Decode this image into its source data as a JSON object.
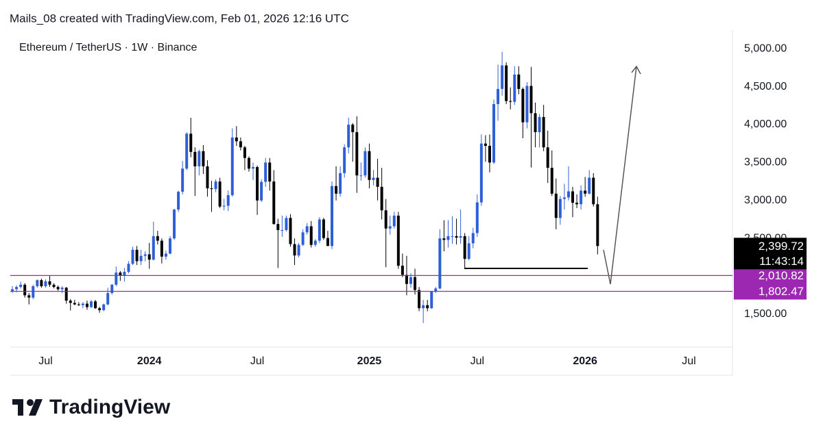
{
  "chart_data": {
    "type": "candlestick",
    "caption": "Mails_08 created with TradingView.com, Feb 01, 2026 12:16 UTC",
    "title": "Ethereum / TetherUS · 1W · Binance",
    "branding": "TradingView",
    "up_color": "#2f5fd6",
    "down_color": "#000000",
    "grid": false,
    "ylim": [
      1085,
      5245
    ],
    "yticks": [
      {
        "value": 1500,
        "label": "1,500.00"
      },
      {
        "value": 2500,
        "label": "2,500.00"
      },
      {
        "value": 3000,
        "label": "3,000.00"
      },
      {
        "value": 3500,
        "label": "3,500.00"
      },
      {
        "value": 4000,
        "label": "4,000.00"
      },
      {
        "value": 4500,
        "label": "4,500.00"
      },
      {
        "value": 5000,
        "label": "5,000.00"
      }
    ],
    "categories": [
      null,
      null,
      null,
      null,
      null,
      null,
      null,
      null,
      "Jul",
      null,
      null,
      null,
      null,
      null,
      null,
      null,
      null,
      null,
      null,
      null,
      null,
      null,
      null,
      null,
      null,
      null,
      null,
      null,
      null,
      null,
      null,
      null,
      null,
      "2024",
      null,
      null,
      null,
      null,
      null,
      null,
      null,
      null,
      null,
      null,
      null,
      null,
      null,
      null,
      null,
      null,
      null,
      null,
      null,
      null,
      null,
      null,
      null,
      null,
      null,
      "Jul",
      null,
      null,
      null,
      null,
      null,
      null,
      null,
      null,
      null,
      null,
      null,
      null,
      null,
      null,
      null,
      null,
      null,
      null,
      null,
      null,
      null,
      null,
      null,
      null,
      null,
      null,
      "2025",
      null,
      null,
      null,
      null,
      null,
      null,
      null,
      null,
      null,
      null,
      null,
      null,
      null,
      null,
      null,
      null,
      null,
      null,
      null,
      null,
      null,
      null,
      null,
      null,
      null,
      "Jul",
      null,
      null,
      null,
      null,
      null,
      null,
      null,
      null,
      null,
      null,
      null,
      null,
      null,
      null,
      null,
      null,
      null,
      null,
      null,
      null,
      null,
      null,
      null,
      null,
      null,
      "2026",
      null,
      null,
      null,
      null,
      null,
      null,
      null,
      null,
      null,
      null,
      null,
      null,
      null,
      null,
      null,
      null,
      null,
      null,
      null,
      null,
      null,
      null,
      null,
      null,
      "Jul",
      null,
      null,
      null,
      null,
      null,
      null,
      null,
      null,
      null,
      null
    ],
    "open": [
      1800,
      1830,
      1860,
      1890,
      1750,
      1720,
      1870,
      1950,
      1870,
      1935,
      1890,
      1860,
      1830,
      1850,
      1680,
      1650,
      1630,
      1620,
      1640,
      1595,
      1670,
      1580,
      1555,
      1630,
      1780,
      1890,
      2050,
      2010,
      2060,
      2165,
      2350,
      2200,
      2270,
      2290,
      2220,
      2530,
      2470,
      2260,
      2300,
      2500,
      2880,
      3115,
      3420,
      3880,
      3640,
      3450,
      3650,
      3450,
      3160,
      3150,
      3250,
      2920,
      2930,
      3070,
      3830,
      3780,
      3700,
      3560,
      3420,
      3440,
      3000,
      3245,
      3500,
      3250,
      2690,
      2610,
      2610,
      2770,
      2425,
      2275,
      2415,
      2580,
      2660,
      2415,
      2470,
      2750,
      2505,
      2400,
      3190,
      3090,
      3360,
      3700,
      4000,
      3900,
      3330,
      3330,
      3650,
      3270,
      3300,
      3180,
      2870,
      2630,
      2660,
      2800,
      2140,
      2020,
      1900,
      1990,
      1820,
      1580,
      1620,
      1580,
      1800,
      1840,
      2500,
      2480,
      2530,
      2530,
      2510,
      2530,
      2230,
      2435,
      2570,
      2975,
      3750,
      3720,
      3500,
      4270,
      4470,
      4780,
      4310,
      4300,
      4660,
      4470,
      4030,
      4510,
      4150,
      3900,
      4100,
      3700,
      3430,
      3090,
      2770,
      3020,
      3040,
      3120,
      2970,
      2950,
      3130,
      3090,
      3300,
      2950,
      null,
      null,
      null,
      null,
      null,
      null,
      null,
      null,
      null,
      null,
      null,
      null,
      null,
      null,
      null,
      null,
      null,
      null,
      null,
      null,
      null,
      null,
      null,
      null,
      null,
      null,
      null,
      null,
      null,
      null,
      null,
      null
    ],
    "high": [
      1870,
      1880,
      1930,
      1910,
      1780,
      1890,
      1960,
      1970,
      1960,
      2010,
      1910,
      1880,
      1870,
      1860,
      1700,
      1690,
      1660,
      1660,
      1680,
      1690,
      1690,
      1600,
      1640,
      1850,
      1900,
      2130,
      2070,
      2110,
      2200,
      2390,
      2400,
      2350,
      2330,
      2440,
      2720,
      2600,
      2500,
      2340,
      2530,
      2890,
      3130,
      3520,
      3900,
      4090,
      3700,
      3670,
      3730,
      3530,
      3260,
      3280,
      3300,
      3020,
      3130,
      3950,
      3980,
      3830,
      3720,
      3580,
      3500,
      3460,
      3280,
      3560,
      3560,
      3400,
      2760,
      2800,
      2800,
      2820,
      2500,
      2440,
      2620,
      2700,
      2730,
      2490,
      2780,
      2770,
      2600,
      3250,
      3450,
      3450,
      3740,
      4090,
      4020,
      4110,
      3500,
      3700,
      3750,
      3400,
      3550,
      3430,
      3020,
      2800,
      2850,
      2850,
      2300,
      2270,
      2040,
      2100,
      1860,
      1690,
      1690,
      1800,
      1860,
      2620,
      2740,
      2740,
      2790,
      2760,
      2880,
      2570,
      2530,
      2640,
      3080,
      3870,
      3860,
      3870,
      4330,
      4790,
      4960,
      4820,
      4490,
      4770,
      4770,
      4490,
      4560,
      4760,
      4290,
      4140,
      4260,
      3920,
      3660,
      3290,
      3060,
      3220,
      3450,
      3180,
      3080,
      3200,
      3310,
      3400,
      3360,
      3050,
      null,
      null,
      null,
      null,
      null,
      null,
      null,
      null,
      null,
      null,
      null,
      null,
      null,
      null,
      null,
      null,
      null,
      null,
      null,
      null,
      null,
      null,
      null,
      null,
      null,
      null,
      null,
      null,
      null,
      null,
      null,
      null
    ],
    "low": [
      1780,
      1790,
      1840,
      1720,
      1630,
      1700,
      1850,
      1850,
      1850,
      1860,
      1840,
      1810,
      1780,
      1640,
      1550,
      1620,
      1610,
      1580,
      1560,
      1580,
      1570,
      1520,
      1540,
      1620,
      1760,
      1870,
      1940,
      1930,
      2040,
      2150,
      2150,
      2150,
      2200,
      2100,
      2210,
      2420,
      2170,
      2220,
      2290,
      2480,
      2850,
      3080,
      3400,
      3570,
      3060,
      3330,
      3350,
      3050,
      2850,
      3110,
      2900,
      2870,
      2860,
      3050,
      3720,
      3660,
      3400,
      3380,
      3270,
      2810,
      2980,
      3180,
      3130,
      2680,
      2110,
      2520,
      2590,
      2390,
      2150,
      2250,
      2400,
      2550,
      2380,
      2390,
      2440,
      2480,
      2400,
      2360,
      3000,
      3050,
      3300,
      3620,
      3510,
      3100,
      3260,
      3300,
      3160,
      3200,
      3000,
      2750,
      2120,
      2550,
      2630,
      2100,
      1990,
      1750,
      1850,
      1760,
      1540,
      1385,
      1540,
      1570,
      1780,
      1830,
      2330,
      2380,
      2430,
      2420,
      2430,
      2110,
      2210,
      2370,
      2520,
      2930,
      3510,
      3370,
      3480,
      4050,
      4380,
      4270,
      4200,
      4260,
      4400,
      3820,
      3950,
      3435,
      3700,
      3700,
      3650,
      3230,
      3060,
      2620,
      2680,
      2880,
      3000,
      2780,
      2900,
      2880,
      3050,
      3080,
      2920,
      2290,
      null,
      null,
      null,
      null,
      null,
      null,
      null,
      null,
      null,
      null,
      null,
      null,
      null,
      null,
      null,
      null,
      null,
      null,
      null,
      null,
      null,
      null,
      null,
      null,
      null,
      null,
      null,
      null,
      null,
      null,
      null,
      null
    ],
    "close": [
      1830,
      1860,
      1890,
      1750,
      1720,
      1870,
      1950,
      1870,
      1935,
      1890,
      1860,
      1830,
      1850,
      1680,
      1650,
      1630,
      1620,
      1640,
      1595,
      1670,
      1580,
      1555,
      1630,
      1780,
      1890,
      2050,
      2010,
      2060,
      2165,
      2350,
      2200,
      2270,
      2290,
      2220,
      2530,
      2470,
      2260,
      2300,
      2500,
      2880,
      3115,
      3420,
      3880,
      3640,
      3450,
      3650,
      3450,
      3160,
      3150,
      3250,
      2920,
      2930,
      3070,
      3830,
      3780,
      3700,
      3560,
      3420,
      3440,
      3000,
      3245,
      3500,
      3250,
      2690,
      2610,
      2610,
      2770,
      2425,
      2275,
      2415,
      2580,
      2660,
      2415,
      2470,
      2750,
      2505,
      2400,
      3190,
      3090,
      3360,
      3700,
      4000,
      3900,
      3330,
      3330,
      3650,
      3270,
      3300,
      3180,
      2870,
      2630,
      2660,
      2800,
      2140,
      2020,
      1900,
      1990,
      1820,
      1580,
      1620,
      1580,
      1800,
      1840,
      2500,
      2480,
      2530,
      2530,
      2510,
      2530,
      2230,
      2435,
      2570,
      2975,
      3750,
      3720,
      3500,
      4270,
      4470,
      4780,
      4310,
      4300,
      4660,
      4470,
      4030,
      4510,
      4150,
      3900,
      4100,
      3700,
      3430,
      3090,
      2770,
      3020,
      3040,
      3120,
      2970,
      2950,
      3130,
      3090,
      3300,
      2950,
      2399.72,
      null,
      null,
      null,
      null,
      null,
      null,
      null,
      null,
      null,
      null,
      null,
      null,
      null,
      null,
      null,
      null,
      null,
      null,
      null,
      null,
      null,
      null,
      null,
      null,
      null,
      null,
      null,
      null,
      null,
      null,
      null,
      null
    ],
    "last_price": {
      "value": 2399.72,
      "label": "2,399.72",
      "countdown": "11:43:14",
      "color": "#000000"
    },
    "price_lines": [
      {
        "value": 2010.82,
        "label": "2,010.82",
        "color": "#9c27b0"
      },
      {
        "value": 1802.47,
        "label": "1,802.47",
        "color": "#9c27b0"
      }
    ]
  }
}
